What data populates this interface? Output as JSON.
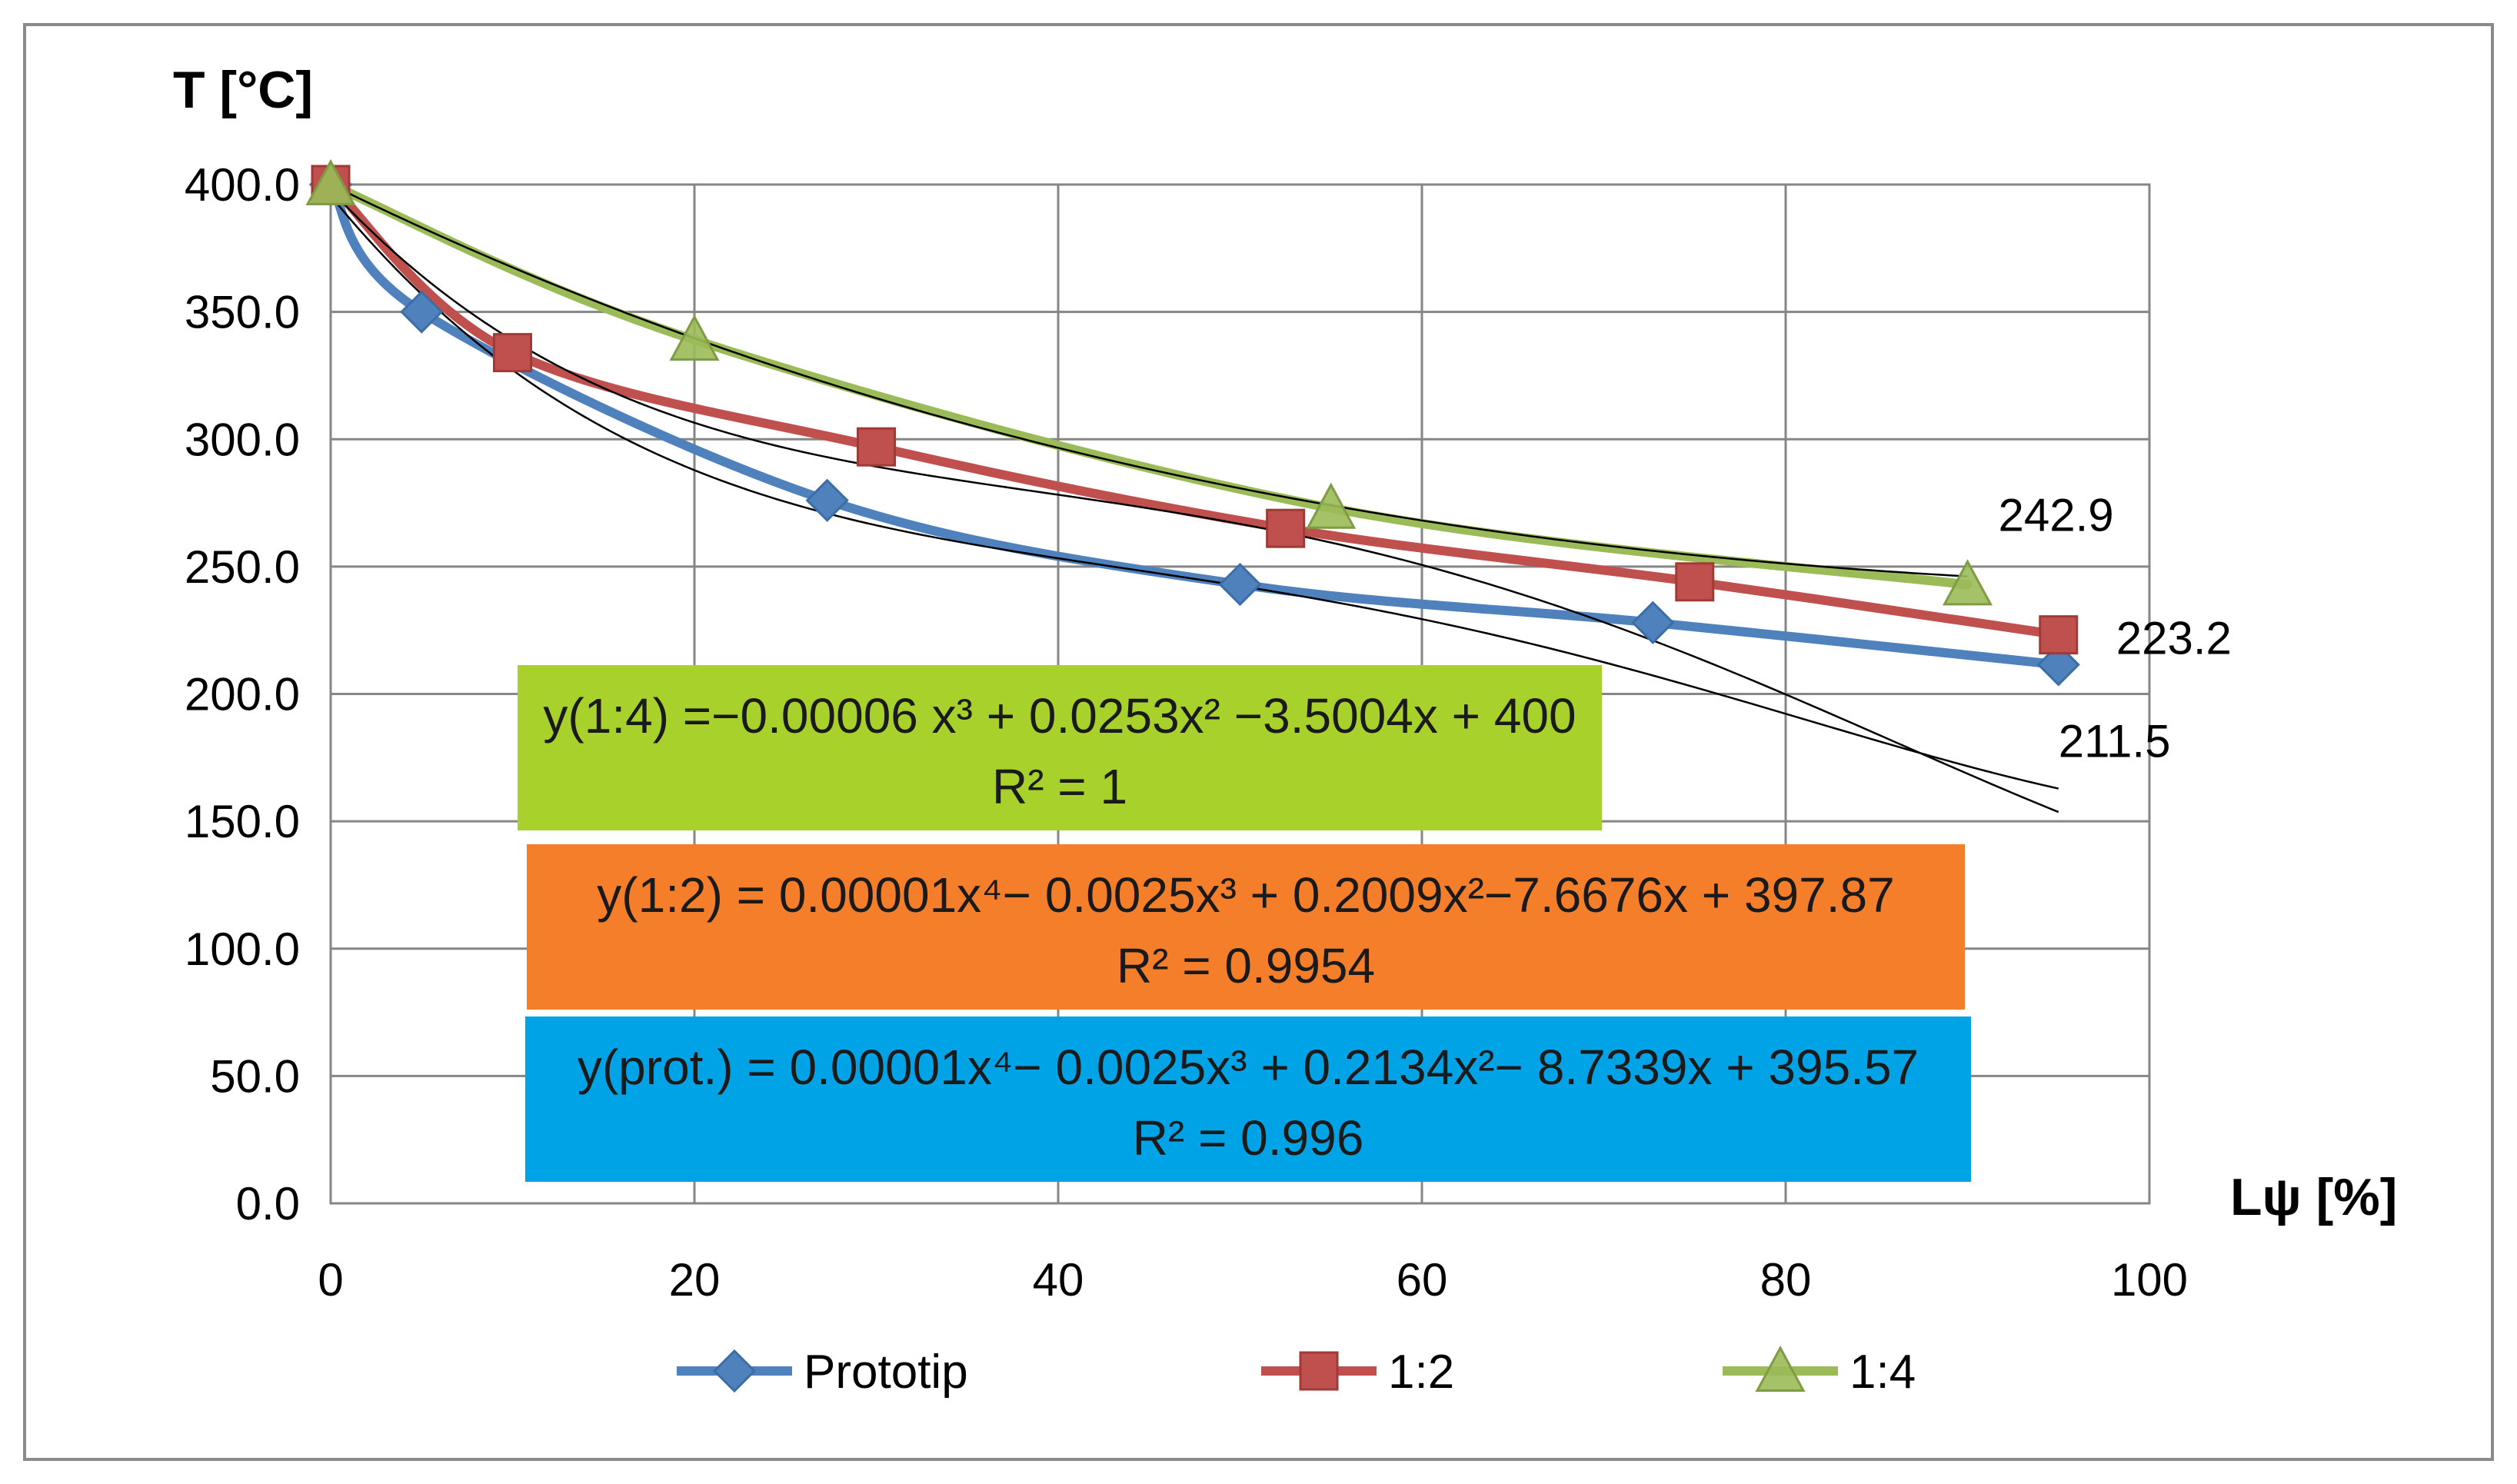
{
  "chart_data": {
    "type": "line",
    "title": "",
    "ylabel": "T [°C]",
    "xlabel": "Lψ [%]",
    "xlim": [
      0,
      100
    ],
    "ylim": [
      0,
      400
    ],
    "x_ticks": [
      "0",
      "20",
      "40",
      "60",
      "80",
      "100"
    ],
    "y_ticks": [
      "0.0",
      "50.0",
      "100.0",
      "150.0",
      "200.0",
      "250.0",
      "300.0",
      "350.0",
      "400.0"
    ],
    "grid": true,
    "legend_position": "bottom",
    "series": [
      {
        "name": "Prototip",
        "color": "#4f81bd",
        "marker": "diamond",
        "x": [
          0,
          5,
          27.3,
          50,
          72.7,
          95
        ],
        "values": [
          400,
          350,
          276,
          243,
          228,
          211.5
        ],
        "end_label": "211.5",
        "trend_color": "#000000"
      },
      {
        "name": "1:2",
        "color": "#c0504d",
        "marker": "square",
        "x": [
          0,
          10,
          30,
          52.5,
          75,
          95
        ],
        "values": [
          400,
          334,
          297,
          265,
          244,
          223.2
        ],
        "end_label": "223.2",
        "trend_color": "#000000"
      },
      {
        "name": "1:4",
        "color": "#9bbb59",
        "marker": "triangle",
        "x": [
          0,
          20,
          55,
          90
        ],
        "values": [
          400,
          339,
          273,
          242.9
        ],
        "end_label": "242.9",
        "trend_color": "#000000"
      }
    ],
    "equations": [
      {
        "name": "eq-1-4",
        "line1": "y(1:4) =−0.00006 x³ + 0.0253x² −3.5004x + 400",
        "line2": "R² = 1",
        "color": "#a9d12c"
      },
      {
        "name": "eq-1-2",
        "line1": "y(1:2) =    0.00001x⁴− 0.0025x³ + 0.2009x²−7.6676x + 397.87",
        "line2": "R² = 0.9954",
        "color": "#f47e2a"
      },
      {
        "name": "eq-prot",
        "line1": "y(prot.) =  0.00001x⁴− 0.0025x³ + 0.2134x²− 8.7339x + 395.57",
        "line2": "R² = 0.996",
        "color": "#00a3e6"
      }
    ]
  }
}
